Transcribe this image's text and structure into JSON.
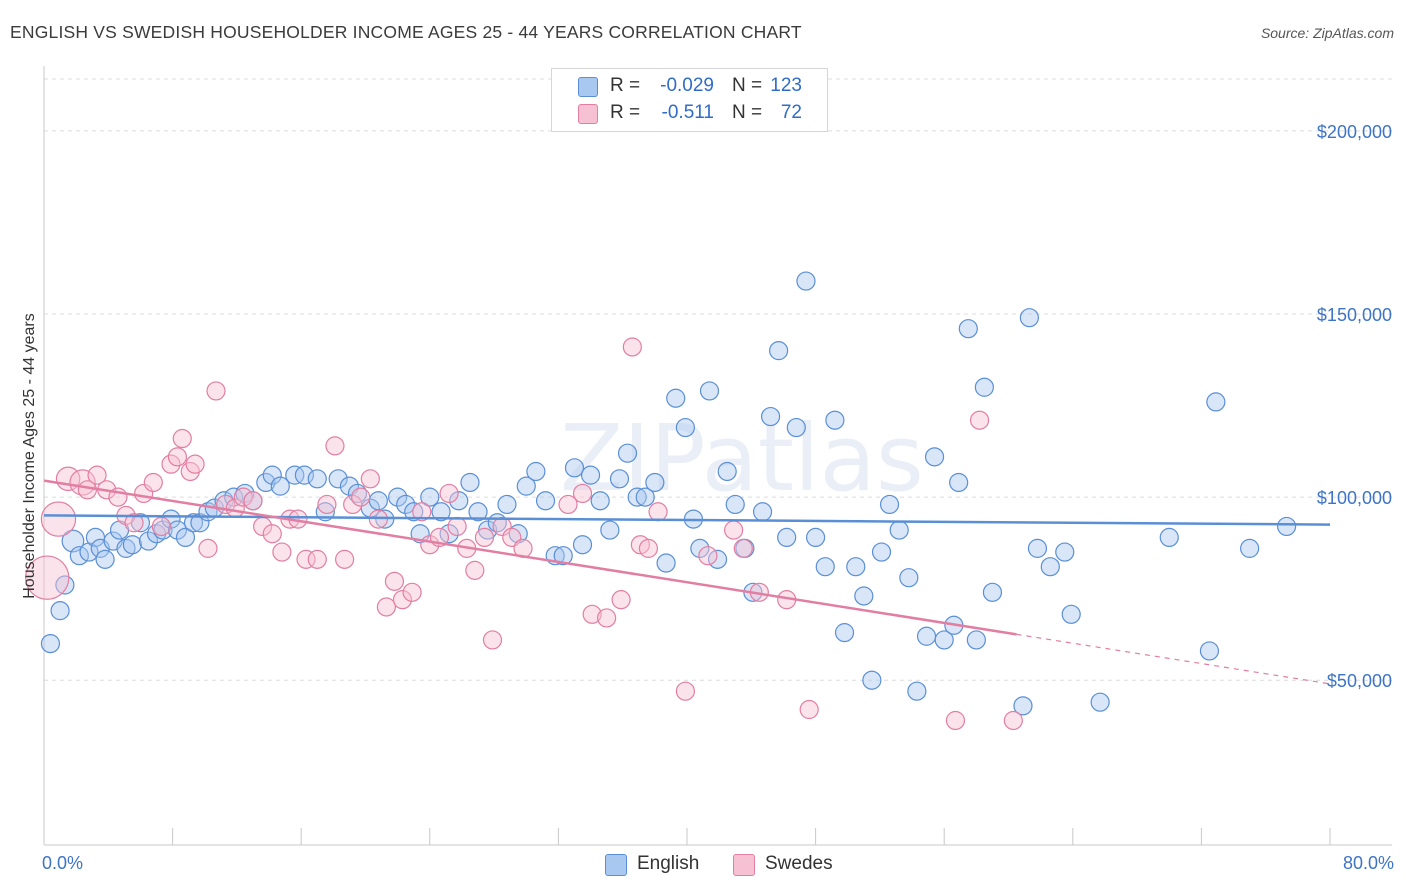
{
  "title": "ENGLISH VS SWEDISH HOUSEHOLDER INCOME AGES 25 - 44 YEARS CORRELATION CHART",
  "source": "Source: ZipAtlas.com",
  "watermark": "ZIPatlas",
  "legend": {
    "rows": [
      {
        "r_label": "R =",
        "r_value": "-0.029",
        "n_label": "N =",
        "n_value": "123",
        "color": "#5a8fd6"
      },
      {
        "r_label": "R =",
        "r_value": "-0.511",
        "n_label": "N =",
        "n_value": "72",
        "color": "#e27ea2"
      }
    ]
  },
  "bottom_legend": [
    {
      "label": "English",
      "color": "#a8c8ef"
    },
    {
      "label": "Swedes",
      "color": "#f6c1d3"
    }
  ],
  "chart_data": {
    "type": "scatter",
    "title": "ENGLISH VS SWEDISH HOUSEHOLDER INCOME AGES 25 - 44 YEARS CORRELATION CHART",
    "xlabel": "",
    "ylabel": "Householder Income Ages 25 - 44 years",
    "xlim": [
      0,
      80
    ],
    "ylim": [
      5000,
      215000
    ],
    "x_tick_labels": [
      "0.0%",
      "80.0%"
    ],
    "y_ticks": [
      50000,
      100000,
      150000,
      200000
    ],
    "y_tick_labels": [
      "$50,000",
      "$100,000",
      "$150,000",
      "$200,000"
    ],
    "grid": true,
    "series": [
      {
        "name": "English",
        "color": "#5a8fd6",
        "fill": "#a8c8ef",
        "trend": {
          "x": [
            0,
            80
          ],
          "y": [
            95000,
            92500
          ],
          "dashed_after": null
        },
        "points": [
          [
            0.4,
            60000,
            1
          ],
          [
            1.0,
            69000,
            1
          ],
          [
            1.3,
            76000,
            1
          ],
          [
            1.8,
            88000,
            1.2
          ],
          [
            2.2,
            84000,
            1
          ],
          [
            2.8,
            85000,
            1
          ],
          [
            3.2,
            89000,
            1
          ],
          [
            3.5,
            86000,
            1
          ],
          [
            3.8,
            83000,
            1
          ],
          [
            4.3,
            88000,
            1
          ],
          [
            4.7,
            91000,
            1
          ],
          [
            5.1,
            86000,
            1
          ],
          [
            5.5,
            87000,
            1
          ],
          [
            6.0,
            93000,
            1
          ],
          [
            6.5,
            88000,
            1
          ],
          [
            7.0,
            90000,
            1
          ],
          [
            7.4,
            91000,
            1
          ],
          [
            7.9,
            94000,
            1
          ],
          [
            8.3,
            91000,
            1
          ],
          [
            8.8,
            89000,
            1
          ],
          [
            9.3,
            93000,
            1
          ],
          [
            9.7,
            93000,
            1
          ],
          [
            10.2,
            96000,
            1
          ],
          [
            10.6,
            97000,
            1
          ],
          [
            11.2,
            99000,
            1
          ],
          [
            11.8,
            100000,
            1
          ],
          [
            12.5,
            101000,
            1
          ],
          [
            13.0,
            99000,
            1
          ],
          [
            13.8,
            104000,
            1
          ],
          [
            14.2,
            106000,
            1
          ],
          [
            14.7,
            103000,
            1
          ],
          [
            15.6,
            106000,
            1
          ],
          [
            16.2,
            106000,
            1
          ],
          [
            17.0,
            105000,
            1
          ],
          [
            17.5,
            96000,
            1
          ],
          [
            18.3,
            105000,
            1
          ],
          [
            19.0,
            103000,
            1
          ],
          [
            19.5,
            101000,
            1
          ],
          [
            20.3,
            97000,
            1
          ],
          [
            20.8,
            99000,
            1
          ],
          [
            21.2,
            94000,
            1
          ],
          [
            22.0,
            100000,
            1
          ],
          [
            22.5,
            98000,
            1
          ],
          [
            23.0,
            96000,
            1
          ],
          [
            23.4,
            90000,
            1
          ],
          [
            24.0,
            100000,
            1
          ],
          [
            24.7,
            96000,
            1
          ],
          [
            25.2,
            90000,
            1
          ],
          [
            25.8,
            99000,
            1
          ],
          [
            26.5,
            104000,
            1
          ],
          [
            27.0,
            96000,
            1
          ],
          [
            27.6,
            91000,
            1
          ],
          [
            28.2,
            93000,
            1
          ],
          [
            28.8,
            98000,
            1
          ],
          [
            29.5,
            90000,
            1
          ],
          [
            30.0,
            103000,
            1
          ],
          [
            30.6,
            107000,
            1
          ],
          [
            31.2,
            99000,
            1
          ],
          [
            31.8,
            84000,
            1
          ],
          [
            32.3,
            84000,
            1
          ],
          [
            33.0,
            108000,
            1
          ],
          [
            33.5,
            87000,
            1
          ],
          [
            34.0,
            106000,
            1
          ],
          [
            34.6,
            99000,
            1
          ],
          [
            35.2,
            91000,
            1
          ],
          [
            35.8,
            105000,
            1
          ],
          [
            36.3,
            112000,
            1
          ],
          [
            36.9,
            100000,
            1
          ],
          [
            37.4,
            100000,
            1
          ],
          [
            38.0,
            104000,
            1
          ],
          [
            38.7,
            82000,
            1
          ],
          [
            39.3,
            127000,
            1
          ],
          [
            39.9,
            119000,
            1
          ],
          [
            40.4,
            94000,
            1
          ],
          [
            40.8,
            86000,
            1
          ],
          [
            41.4,
            129000,
            1
          ],
          [
            41.9,
            83000,
            1
          ],
          [
            42.5,
            107000,
            1
          ],
          [
            43.0,
            98000,
            1
          ],
          [
            43.6,
            86000,
            1
          ],
          [
            44.1,
            74000,
            1
          ],
          [
            44.7,
            96000,
            1
          ],
          [
            45.2,
            122000,
            1
          ],
          [
            45.7,
            140000,
            1
          ],
          [
            46.2,
            89000,
            1
          ],
          [
            46.8,
            119000,
            1
          ],
          [
            47.4,
            159000,
            1
          ],
          [
            48.0,
            89000,
            1
          ],
          [
            48.6,
            81000,
            1
          ],
          [
            49.2,
            121000,
            1
          ],
          [
            49.8,
            63000,
            1
          ],
          [
            50.5,
            81000,
            1
          ],
          [
            51.0,
            73000,
            1
          ],
          [
            51.5,
            50000,
            1
          ],
          [
            52.1,
            85000,
            1
          ],
          [
            52.6,
            98000,
            1
          ],
          [
            53.2,
            91000,
            1
          ],
          [
            53.8,
            78000,
            1
          ],
          [
            54.3,
            47000,
            1
          ],
          [
            54.9,
            62000,
            1
          ],
          [
            55.4,
            111000,
            1
          ],
          [
            56.0,
            61000,
            1
          ],
          [
            56.6,
            65000,
            1
          ],
          [
            56.9,
            104000,
            1
          ],
          [
            57.5,
            146000,
            1
          ],
          [
            58.0,
            61000,
            1
          ],
          [
            58.5,
            130000,
            1
          ],
          [
            59.0,
            74000,
            1
          ],
          [
            60.9,
            43000,
            1
          ],
          [
            61.3,
            149000,
            1
          ],
          [
            61.8,
            86000,
            1
          ],
          [
            62.6,
            81000,
            1
          ],
          [
            63.5,
            85000,
            1
          ],
          [
            63.9,
            68000,
            1
          ],
          [
            65.7,
            44000,
            1
          ],
          [
            70.0,
            89000,
            1
          ],
          [
            72.5,
            58000,
            1
          ],
          [
            72.9,
            126000,
            1
          ],
          [
            75.0,
            86000,
            1
          ],
          [
            77.3,
            92000,
            1
          ]
        ]
      },
      {
        "name": "Swedes",
        "color": "#e27ea2",
        "fill": "#f6c1d3",
        "trend": {
          "x": [
            0,
            80
          ],
          "y": [
            104500,
            49000
          ],
          "dashed_after": 60.5
        },
        "points": [
          [
            0.2,
            78000,
            2.4
          ],
          [
            0.9,
            94000,
            1.9
          ],
          [
            1.5,
            105000,
            1.3
          ],
          [
            2.4,
            104000,
            1.4
          ],
          [
            2.7,
            102000,
            1
          ],
          [
            3.3,
            106000,
            1
          ],
          [
            3.9,
            102000,
            1
          ],
          [
            4.6,
            100000,
            1
          ],
          [
            5.1,
            95000,
            1
          ],
          [
            5.6,
            93000,
            1
          ],
          [
            6.2,
            101000,
            1
          ],
          [
            6.8,
            104000,
            1
          ],
          [
            7.3,
            92000,
            1
          ],
          [
            7.9,
            109000,
            1
          ],
          [
            8.3,
            111000,
            1
          ],
          [
            8.6,
            116000,
            1
          ],
          [
            9.1,
            107000,
            1
          ],
          [
            9.4,
            109000,
            1
          ],
          [
            10.2,
            86000,
            1
          ],
          [
            10.7,
            129000,
            1
          ],
          [
            11.3,
            98000,
            1
          ],
          [
            11.9,
            97000,
            1
          ],
          [
            12.4,
            100000,
            1
          ],
          [
            13.0,
            99000,
            1
          ],
          [
            13.6,
            92000,
            1
          ],
          [
            14.2,
            90000,
            1
          ],
          [
            14.8,
            85000,
            1
          ],
          [
            15.3,
            94000,
            1
          ],
          [
            15.8,
            94000,
            1
          ],
          [
            16.3,
            83000,
            1
          ],
          [
            17.0,
            83000,
            1
          ],
          [
            17.6,
            98000,
            1
          ],
          [
            18.1,
            114000,
            1
          ],
          [
            18.7,
            83000,
            1
          ],
          [
            19.2,
            98000,
            1
          ],
          [
            19.7,
            100000,
            1
          ],
          [
            20.3,
            105000,
            1
          ],
          [
            20.8,
            94000,
            1
          ],
          [
            21.3,
            70000,
            1
          ],
          [
            21.8,
            77000,
            1
          ],
          [
            22.3,
            72000,
            1
          ],
          [
            22.9,
            74000,
            1
          ],
          [
            23.5,
            96000,
            1
          ],
          [
            24.0,
            87000,
            1
          ],
          [
            24.6,
            89000,
            1
          ],
          [
            25.2,
            101000,
            1
          ],
          [
            25.7,
            92000,
            1
          ],
          [
            26.3,
            86000,
            1
          ],
          [
            26.8,
            80000,
            1
          ],
          [
            27.4,
            89000,
            1
          ],
          [
            27.9,
            61000,
            1
          ],
          [
            28.5,
            92000,
            1
          ],
          [
            29.1,
            89000,
            1
          ],
          [
            29.8,
            86000,
            1
          ],
          [
            32.6,
            98000,
            1
          ],
          [
            33.5,
            101000,
            1
          ],
          [
            34.1,
            68000,
            1
          ],
          [
            35.0,
            67000,
            1
          ],
          [
            35.9,
            72000,
            1
          ],
          [
            36.6,
            141000,
            1
          ],
          [
            37.1,
            87000,
            1
          ],
          [
            37.6,
            86000,
            1
          ],
          [
            38.2,
            96000,
            1
          ],
          [
            39.9,
            47000,
            1
          ],
          [
            41.3,
            84000,
            1
          ],
          [
            42.9,
            91000,
            1
          ],
          [
            43.5,
            86000,
            1
          ],
          [
            44.5,
            74000,
            1
          ],
          [
            46.2,
            72000,
            1
          ],
          [
            47.6,
            42000,
            1
          ],
          [
            56.7,
            39000,
            1
          ],
          [
            58.2,
            121000,
            1
          ],
          [
            60.3,
            39000,
            1
          ]
        ]
      }
    ]
  }
}
